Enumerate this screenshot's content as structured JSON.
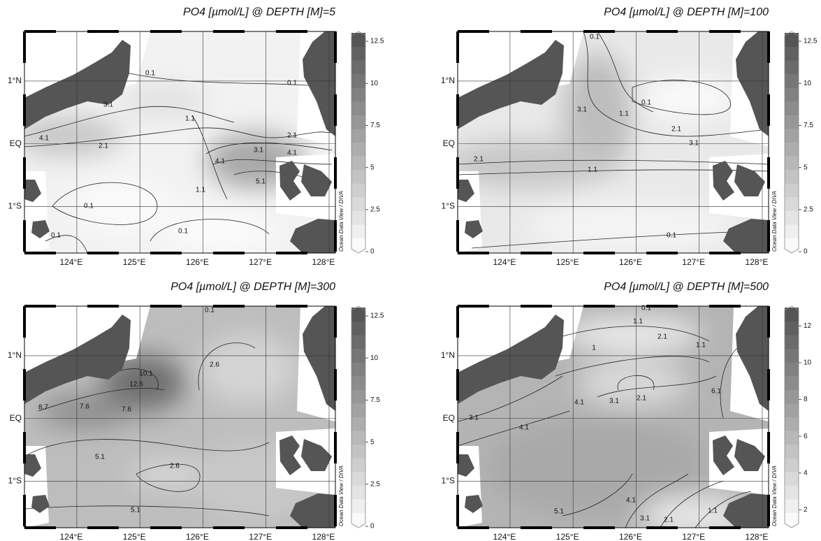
{
  "chart_data": [
    {
      "type": "contour",
      "title": "PO4 [µmol/L] @ DEPTH [M]=5",
      "xlim": [
        123.17,
        128.1
      ],
      "ylim": [
        -1.74,
        1.79
      ],
      "xticks": [
        {
          "value": 124,
          "label": "124°E"
        },
        {
          "value": 125,
          "label": "125°E"
        },
        {
          "value": 126,
          "label": "126°E"
        },
        {
          "value": 127,
          "label": "127°E"
        },
        {
          "value": 128,
          "label": "128°E"
        }
      ],
      "yticks": [
        {
          "value": 1,
          "label": "1°N"
        },
        {
          "value": 0,
          "label": "EQ"
        },
        {
          "value": -1,
          "label": "1°S"
        }
      ],
      "colorbar": {
        "lim": [
          0,
          13
        ],
        "ticks": [
          0,
          2.5,
          5,
          7.5,
          10,
          12.5
        ]
      },
      "contour_labels": [
        0.1,
        0.1,
        3.1,
        4.1,
        2.1,
        1.1,
        2.1,
        3.1,
        4.1,
        4.1,
        5.1,
        1.1,
        0.1,
        0.1,
        0.1
      ],
      "watermark": "Ocean Data View / DIVA"
    },
    {
      "type": "contour",
      "title": "PO4 [µmol/L] @ DEPTH [M]=100",
      "xlim": [
        123.17,
        128.1
      ],
      "ylim": [
        -1.74,
        1.79
      ],
      "xticks": [
        {
          "value": 124,
          "label": "124°E"
        },
        {
          "value": 125,
          "label": "125°E"
        },
        {
          "value": 126,
          "label": "126°E"
        },
        {
          "value": 127,
          "label": "127°E"
        },
        {
          "value": 128,
          "label": "128°E"
        }
      ],
      "yticks": [
        {
          "value": 1,
          "label": "1°N"
        },
        {
          "value": 0,
          "label": "EQ"
        },
        {
          "value": -1,
          "label": "1°S"
        }
      ],
      "colorbar": {
        "lim": [
          0,
          13
        ],
        "ticks": [
          0,
          2.5,
          5,
          7.5,
          10,
          12.5
        ]
      },
      "contour_labels": [
        0.1,
        0.1,
        3.1,
        1.1,
        2.1,
        3.1,
        2.1,
        1.1,
        0.1
      ],
      "watermark": "Ocean Data View / DIVA"
    },
    {
      "type": "contour",
      "title": "PO4 [µmol/L] @ DEPTH [M]=300",
      "xlim": [
        123.17,
        128.1
      ],
      "ylim": [
        -1.74,
        1.79
      ],
      "xticks": [
        {
          "value": 124,
          "label": "124°E"
        },
        {
          "value": 125,
          "label": "125°E"
        },
        {
          "value": 126,
          "label": "126°E"
        },
        {
          "value": 127,
          "label": "127°E"
        },
        {
          "value": 128,
          "label": "128°E"
        }
      ],
      "yticks": [
        {
          "value": 1,
          "label": "1°N"
        },
        {
          "value": 0,
          "label": "EQ"
        },
        {
          "value": -1,
          "label": "1°S"
        }
      ],
      "colorbar": {
        "lim": [
          0,
          13
        ],
        "ticks": [
          0,
          2.5,
          5,
          7.5,
          10,
          12.5
        ]
      },
      "contour_labels": [
        0.1,
        2.6,
        10.1,
        12.6,
        8.7,
        7.6,
        7.6,
        5.1,
        2.6,
        5.1
      ],
      "watermark": "Ocean Data View / DIVA"
    },
    {
      "type": "contour",
      "title": "PO4 [µmol/L] @ DEPTH [M]=500",
      "xlim": [
        123.17,
        128.1
      ],
      "ylim": [
        -1.74,
        1.79
      ],
      "xticks": [
        {
          "value": 124,
          "label": "124°E"
        },
        {
          "value": 125,
          "label": "125°E"
        },
        {
          "value": 126,
          "label": "126°E"
        },
        {
          "value": 127,
          "label": "127°E"
        },
        {
          "value": 128,
          "label": "128°E"
        }
      ],
      "yticks": [
        {
          "value": 1,
          "label": "1°N"
        },
        {
          "value": 0,
          "label": "EQ"
        },
        {
          "value": -1,
          "label": "1°S"
        }
      ],
      "colorbar": {
        "lim": [
          1.1,
          13
        ],
        "ticks": [
          2,
          4,
          6,
          8,
          10,
          12
        ]
      },
      "contour_labels": [
        0.1,
        1.1,
        2.1,
        1.1,
        1,
        2.1,
        3.1,
        4.1,
        6.1,
        3.1,
        4.1,
        5.1,
        4.1,
        3.1,
        2.1,
        1.1
      ],
      "watermark": "Ocean Data View / DIVA"
    }
  ]
}
